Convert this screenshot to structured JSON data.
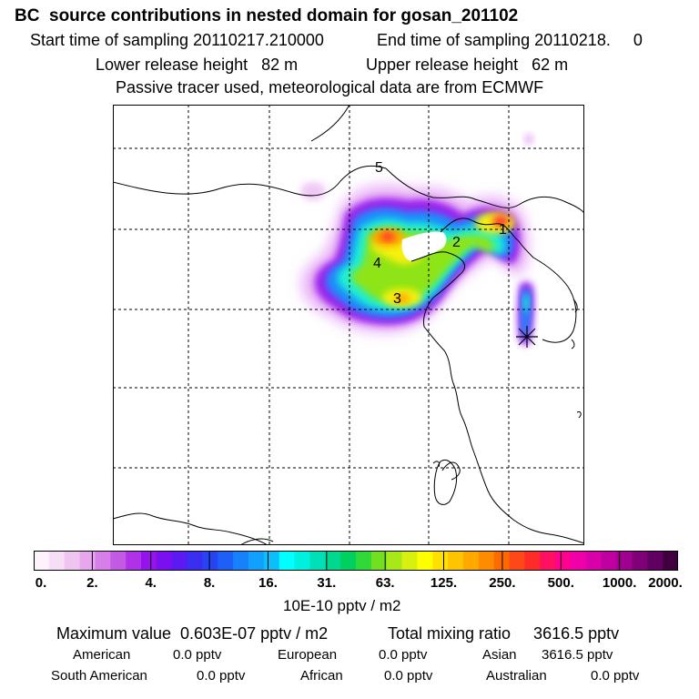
{
  "header": {
    "title": "BC  source contributions in nested domain for gosan_201102",
    "start_label": "Start time of sampling 20110217.210000",
    "end_label": "End time of sampling 20110218.     0",
    "lower_label": "Lower release height   82 m",
    "upper_label": "Upper release height   62 m",
    "tracer_note": "Passive tracer used, meteorological data are from ECMWF"
  },
  "chart_data": {
    "type": "heatmap",
    "title": "BC  source contributions in nested domain for gosan_201102",
    "colorbar": {
      "tick_labels": [
        "0.",
        "2.",
        "4.",
        "8.",
        "16.",
        "31.",
        "63.",
        "125.",
        "250.",
        "500.",
        "1000.",
        "2000."
      ],
      "unit": "10E-10 pptv / m2",
      "colors": [
        "#fdf3fd",
        "#f7def7",
        "#f0c4f0",
        "#e8a6ee",
        "#d77fe8",
        "#c35ae4",
        "#b032e8",
        "#9513ec",
        "#7a10f0",
        "#5c1af2",
        "#3a2ff0",
        "#2744f4",
        "#1e5ff8",
        "#1780fb",
        "#11a0fd",
        "#0dbefd",
        "#00ffff",
        "#00f0e0",
        "#00e0b8",
        "#00d890",
        "#00d060",
        "#30d838",
        "#70e020",
        "#a8e818",
        "#d8f010",
        "#ffff00",
        "#ffe000",
        "#ffc400",
        "#ffa800",
        "#ff8c00",
        "#ff6a00",
        "#ff4818",
        "#ff2a2a",
        "#ff1060",
        "#ff0090",
        "#f000a8",
        "#d800a8",
        "#c000a0",
        "#a00090",
        "#800078",
        "#600060",
        "#400040"
      ]
    },
    "source_labels": [
      "1",
      "2",
      "3",
      "4",
      "5"
    ],
    "receptor": "gosan"
  },
  "footer": {
    "max_value": "Maximum value  0.603E-07 pptv / m2",
    "total_mixing": "Total mixing ratio     3616.5 pptv",
    "regions_row1": [
      {
        "name": "American",
        "value": "0.0 pptv"
      },
      {
        "name": "European",
        "value": "0.0 pptv"
      },
      {
        "name": "Asian",
        "value": "3616.5 pptv"
      }
    ],
    "regions_row2": [
      {
        "name": "South American",
        "value": "0.0 pptv"
      },
      {
        "name": "African",
        "value": "0.0 pptv"
      },
      {
        "name": "Australian",
        "value": "0.0 pptv"
      }
    ]
  }
}
